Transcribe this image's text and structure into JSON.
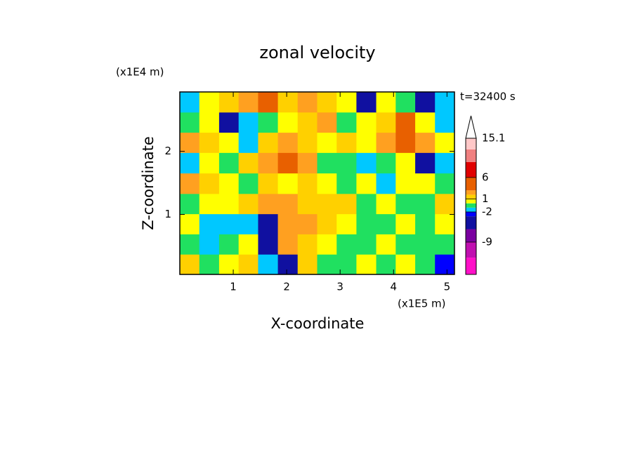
{
  "chart_data": {
    "type": "contour",
    "title": "zonal velocity",
    "x_label": "X-coordinate",
    "y_label": "Z-coordinate",
    "x_unit": "(x1E5 m)",
    "y_unit": "(x1E4 m)",
    "annotation": "t=32400 s",
    "xlim": [
      0,
      5.14
    ],
    "ylim": [
      0.05,
      2.94
    ],
    "xticks": [
      1,
      2,
      3,
      4,
      5
    ],
    "yticks": [
      1,
      2
    ],
    "x": [
      0.18,
      0.55,
      0.92,
      1.28,
      1.65,
      2.02,
      2.39,
      2.75,
      3.12,
      3.49,
      3.86,
      4.22,
      4.59,
      4.96
    ],
    "z": [
      0.21,
      0.53,
      0.85,
      1.17,
      1.49,
      1.82,
      2.14,
      2.46,
      2.78
    ],
    "values": [
      [
        1.5,
        -0.5,
        0.5,
        1.5,
        -1.5,
        -4,
        1.5,
        -0.5,
        -0.5,
        0.5,
        -0.5,
        0.5,
        -0.5,
        -2.5
      ],
      [
        -0.5,
        -1.5,
        -0.5,
        0.5,
        -4,
        2.5,
        1.5,
        0.5,
        -0.5,
        -0.5,
        0.5,
        -0.5,
        -0.5,
        -0.5
      ],
      [
        0.5,
        -1.5,
        -1.5,
        -1.5,
        -4,
        2.5,
        2.5,
        1.5,
        0.5,
        -0.5,
        -0.5,
        0.5,
        -0.5,
        0.5
      ],
      [
        -0.5,
        0.5,
        0.5,
        1.5,
        2.5,
        2.5,
        1.5,
        1.5,
        1.5,
        -0.5,
        0.5,
        -0.5,
        -0.5,
        1.5
      ],
      [
        2.5,
        1.5,
        0.5,
        -0.5,
        1.5,
        0.5,
        1.5,
        0.5,
        -0.5,
        0.5,
        -1.5,
        0.5,
        0.5,
        -0.5
      ],
      [
        -1.5,
        0.5,
        -0.5,
        1.5,
        2.5,
        4,
        2.5,
        -0.5,
        -0.5,
        -1.5,
        -0.5,
        0.5,
        -4,
        -1.5
      ],
      [
        2.5,
        1.5,
        0.5,
        -1.5,
        1.5,
        2.5,
        1.5,
        0.5,
        1.5,
        0.5,
        2.5,
        4,
        2.5,
        0.5
      ],
      [
        -0.5,
        0.5,
        -4,
        -1.5,
        -0.5,
        0.5,
        1.5,
        2.5,
        -0.5,
        0.5,
        1.5,
        4,
        0.5,
        -1.5
      ],
      [
        -1.5,
        0.5,
        1.5,
        2.5,
        4,
        1.5,
        2.5,
        1.5,
        0.5,
        -4,
        0.5,
        -0.5,
        -4,
        -1.5
      ]
    ],
    "colorbar": {
      "levels": [
        -16.5,
        -12.6,
        -9,
        -6,
        -3,
        -2,
        -1,
        0,
        1,
        2,
        3,
        6,
        9.6,
        12.5,
        15.1
      ],
      "colors": [
        "#ff10c8",
        "#c010b0",
        "#7a00a0",
        "#1010a0",
        "#0000ff",
        "#00c8ff",
        "#20e060",
        "#ffff00",
        "#ffd000",
        "#ffa020",
        "#e86000",
        "#e00000",
        "#f08080",
        "#ffc8c8"
      ],
      "ticks": [
        15.1,
        6,
        1,
        -2,
        -9
      ]
    }
  }
}
